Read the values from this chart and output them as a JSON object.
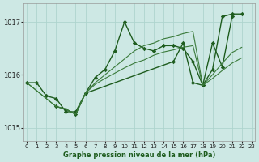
{
  "title": "Graphe pression niveau de la mer (hPa)",
  "bg_color": "#cde8e4",
  "grid_color": "#aed4ce",
  "line_color_dark": "#1e5c1e",
  "line_color_light": "#4a9e4a",
  "ylim": [
    1014.75,
    1017.35
  ],
  "yticks": [
    1015,
    1016,
    1017
  ],
  "xlim": [
    -0.3,
    23.3
  ],
  "xticks": [
    0,
    1,
    2,
    3,
    4,
    5,
    6,
    7,
    8,
    9,
    10,
    11,
    12,
    13,
    14,
    15,
    16,
    17,
    18,
    19,
    20,
    21,
    22,
    23
  ],
  "series": [
    {
      "x": [
        0,
        1,
        2,
        3,
        4,
        5,
        6,
        7,
        8,
        9,
        10,
        11,
        12,
        13,
        14,
        15,
        16,
        17,
        18,
        19,
        20,
        21,
        22
      ],
      "y": [
        1015.85,
        1015.85,
        1015.6,
        1015.55,
        1015.3,
        1015.3,
        1015.65,
        1015.95,
        1016.1,
        1016.45,
        1017.0,
        1016.6,
        1016.5,
        1016.45,
        1016.55,
        1016.55,
        1016.5,
        1016.25,
        1015.8,
        1016.1,
        1017.1,
        1017.15,
        1017.15
      ],
      "color": "#1e5c1e",
      "lw": 1.0,
      "marker": "D",
      "ms": 2.2
    },
    {
      "x": [
        3,
        4,
        5,
        6,
        15,
        16,
        17,
        18,
        19,
        20,
        21
      ],
      "y": [
        1015.4,
        1015.35,
        1015.25,
        1015.65,
        1016.25,
        1016.6,
        1015.85,
        1015.8,
        1016.6,
        1016.15,
        1017.1
      ],
      "color": "#1e5c1e",
      "lw": 1.0,
      "marker": "D",
      "ms": 2.2
    },
    {
      "x": [
        0,
        3,
        4,
        5,
        6,
        7,
        8,
        9,
        10,
        11,
        12,
        13,
        14,
        15,
        16,
        17,
        18,
        19,
        20,
        21,
        22
      ],
      "y": [
        1015.85,
        1015.4,
        1015.35,
        1015.25,
        1015.65,
        1015.85,
        1016.0,
        1016.15,
        1016.3,
        1016.45,
        1016.55,
        1016.6,
        1016.68,
        1016.72,
        1016.78,
        1016.82,
        1015.8,
        1016.0,
        1016.22,
        1016.42,
        1016.52
      ],
      "color": "#3a7a3a",
      "lw": 0.8,
      "marker": null,
      "ms": 0
    },
    {
      "x": [
        0,
        3,
        4,
        5,
        6,
        7,
        8,
        9,
        10,
        11,
        12,
        13,
        14,
        15,
        16,
        17,
        18,
        19,
        20,
        21,
        22
      ],
      "y": [
        1015.85,
        1015.4,
        1015.35,
        1015.25,
        1015.65,
        1015.82,
        1015.93,
        1016.03,
        1016.13,
        1016.22,
        1016.28,
        1016.37,
        1016.43,
        1016.47,
        1016.52,
        1016.55,
        1015.8,
        1015.93,
        1016.08,
        1016.22,
        1016.32
      ],
      "color": "#3a7a3a",
      "lw": 0.8,
      "marker": null,
      "ms": 0
    }
  ]
}
